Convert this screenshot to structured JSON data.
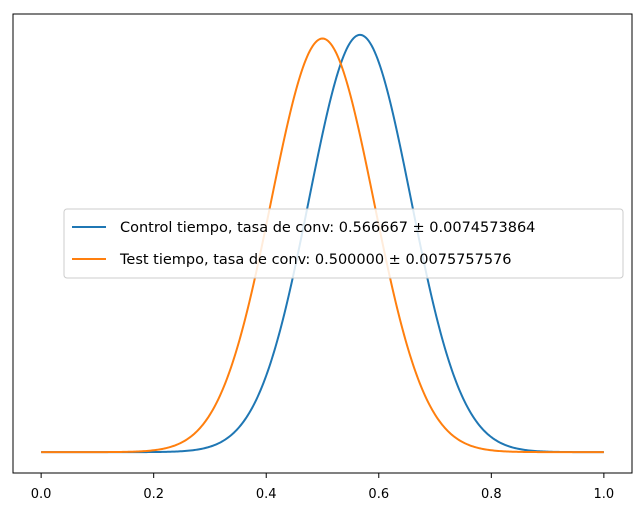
{
  "chart_data": {
    "type": "line",
    "title": "",
    "xlabel": "",
    "ylabel": "",
    "xlim": [
      -0.05,
      1.05
    ],
    "x_ticks": [
      "0.0",
      "0.2",
      "0.4",
      "0.6",
      "0.8",
      "1.0"
    ],
    "y_ticks_visible": false,
    "grid": false,
    "legend_position": "center-left",
    "colors": {
      "control": "#1f77b4",
      "test": "#ff7f0e",
      "axes": "#000000",
      "legend_border": "#cccccc"
    },
    "series": [
      {
        "name": "Control tiempo, tasa de conv: 0.566667 ± 0.0074573864",
        "distribution": "normal",
        "mean": 0.566667,
        "sd": 0.0905,
        "x_range": [
          0,
          1
        ],
        "color": "#1f77b4"
      },
      {
        "name": "Test tiempo, tasa de conv: 0.500000 ± 0.0075757576",
        "distribution": "normal",
        "mean": 0.5,
        "sd": 0.0913,
        "x_range": [
          0,
          1
        ],
        "color": "#ff7f0e"
      }
    ]
  }
}
